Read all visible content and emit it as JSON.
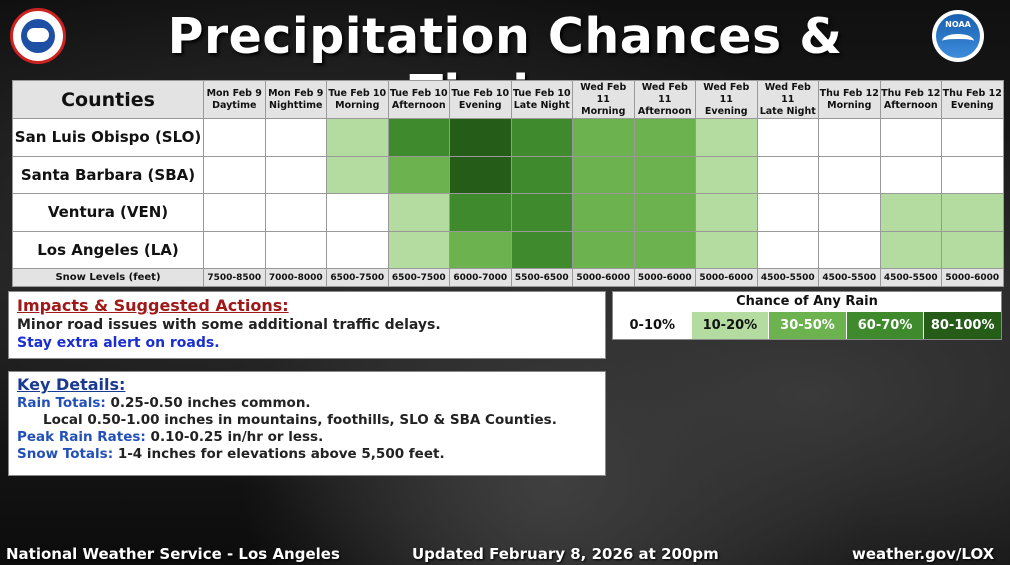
{
  "header": {
    "title": "Precipitation Chances & Timing",
    "nws_logo": "nws-logo",
    "noaa_logo": "noaa-logo",
    "noaa_logo_text": "NOAA",
    "nws_logo_text": "NATIONAL WEATHER SERVICE"
  },
  "table": {
    "counties_header": "Counties",
    "periods": [
      {
        "day": "Mon Feb 9",
        "time": "Daytime"
      },
      {
        "day": "Mon Feb 9",
        "time": "Nighttime"
      },
      {
        "day": "Tue Feb 10",
        "time": "Morning"
      },
      {
        "day": "Tue Feb 10",
        "time": "Afternoon"
      },
      {
        "day": "Tue Feb 10",
        "time": "Evening"
      },
      {
        "day": "Tue Feb 10",
        "time": "Late Night"
      },
      {
        "day": "Wed Feb 11",
        "time": "Morning"
      },
      {
        "day": "Wed Feb 11",
        "time": "Afternoon"
      },
      {
        "day": "Wed Feb 11",
        "time": "Evening"
      },
      {
        "day": "Wed Feb 11",
        "time": "Late Night"
      },
      {
        "day": "Thu Feb 12",
        "time": "Morning"
      },
      {
        "day": "Thu Feb 12",
        "time": "Afternoon"
      },
      {
        "day": "Thu Feb 12",
        "time": "Evening"
      }
    ],
    "counties": [
      {
        "name": "San Luis Obispo (SLO)",
        "chance_levels": [
          0,
          0,
          1,
          3,
          4,
          3,
          2,
          2,
          1,
          0,
          0,
          0,
          0
        ]
      },
      {
        "name": "Santa Barbara (SBA)",
        "chance_levels": [
          0,
          0,
          1,
          2,
          4,
          3,
          2,
          2,
          1,
          0,
          0,
          0,
          0
        ]
      },
      {
        "name": "Ventura (VEN)",
        "chance_levels": [
          0,
          0,
          0,
          1,
          3,
          3,
          2,
          2,
          1,
          0,
          0,
          1,
          1
        ]
      },
      {
        "name": "Los Angeles (LA)",
        "chance_levels": [
          0,
          0,
          0,
          1,
          2,
          3,
          2,
          2,
          1,
          0,
          0,
          1,
          1
        ]
      }
    ],
    "snow_label": "Snow Levels (feet)",
    "snow_levels": [
      "7500-8500",
      "7000-8000",
      "6500-7500",
      "6500-7500",
      "6000-7000",
      "5500-6500",
      "5000-6000",
      "5000-6000",
      "5000-6000",
      "4500-5500",
      "4500-5500",
      "4500-5500",
      "5000-6000"
    ]
  },
  "legend": {
    "title": "Chance of Any Rain",
    "items": [
      {
        "label": "0-10%",
        "color": "#ffffff",
        "text_color": "#111111"
      },
      {
        "label": "10-20%",
        "color": "#b4dca0",
        "text_color": "#111111"
      },
      {
        "label": "30-50%",
        "color": "#6cb24f",
        "text_color": "#ffffff"
      },
      {
        "label": "60-70%",
        "color": "#3e8a2c",
        "text_color": "#ffffff"
      },
      {
        "label": "80-100%",
        "color": "#245c18",
        "text_color": "#ffffff"
      }
    ]
  },
  "impacts": {
    "heading": "Impacts & Suggested Actions:",
    "line1": "Minor road issues with some additional traffic delays.",
    "line2": "Stay extra alert on roads."
  },
  "details": {
    "heading": "Key Details:",
    "rain_key": "Rain Totals:",
    "rain_val": "0.25-0.50 inches common.",
    "rain_local": "Local 0.50-1.00 inches in mountains, foothills, SLO & SBA Counties.",
    "peak_key": "Peak Rain Rates:",
    "peak_val": "0.10-0.25 in/hr or less.",
    "snow_key": "Snow Totals:",
    "snow_val": "1-4 inches for elevations above 5,500 feet."
  },
  "footer": {
    "office": "National Weather Service - Los Angeles",
    "updated": "Updated February 8, 2026 at 200pm",
    "url": "weather.gov/LOX"
  }
}
